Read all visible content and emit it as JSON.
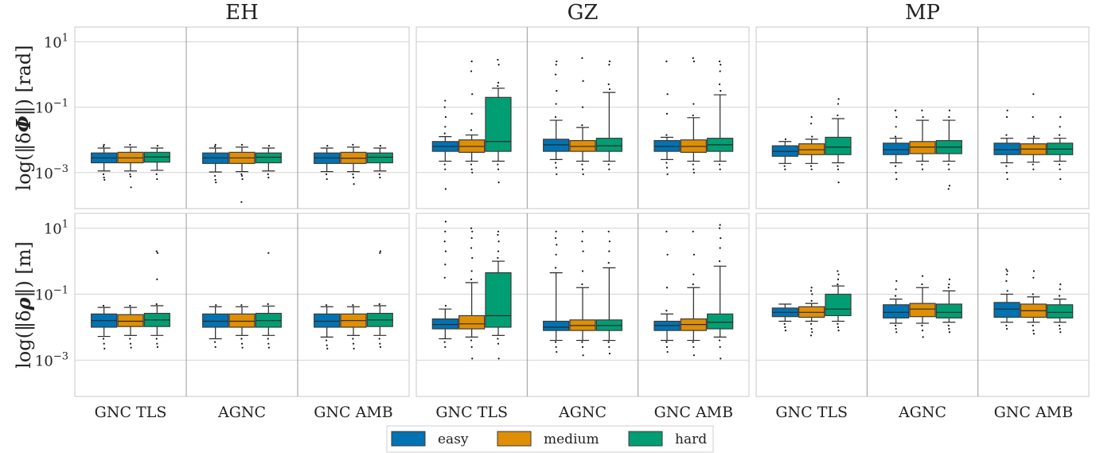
{
  "chart_data": {
    "type": "box",
    "columns": [
      "EH",
      "GZ",
      "MP"
    ],
    "rows": [
      {
        "ylabel_prefix": "log(‖δ",
        "ylabel_symbol": "Φ",
        "ylabel_suffix": "‖) [rad]"
      },
      {
        "ylabel_prefix": "log(‖δ",
        "ylabel_symbol": "ρ",
        "ylabel_suffix": "‖) [m]"
      }
    ],
    "methods": [
      "GNC TLS",
      "AGNC",
      "GNC AMB"
    ],
    "y_scale": "log",
    "ylim_exp": [
      -4.1,
      1.45
    ],
    "y_ticks": [
      {
        "exp": 1,
        "base": "10",
        "sup": "1"
      },
      {
        "exp": -1,
        "base": "10",
        "sup": "−1"
      },
      {
        "exp": -3,
        "base": "10",
        "sup": "−3"
      }
    ],
    "grid": true,
    "legend_position": "bottom-center",
    "legend": [
      {
        "label": "easy",
        "color": "#0173b2"
      },
      {
        "label": "medium",
        "color": "#de8f05"
      },
      {
        "label": "hard",
        "color": "#029e73"
      }
    ],
    "series": [
      {
        "row": 0,
        "col": 0,
        "method": 0,
        "boxes": [
          {
            "med": -2.55,
            "q1": -2.7,
            "q3": -2.4,
            "lo": -2.95,
            "hi": -2.25,
            "fl": [
              -3.05,
              -3.15,
              -3.22,
              -2.2,
              -2.15
            ]
          },
          {
            "med": -2.55,
            "q1": -2.7,
            "q3": -2.38,
            "lo": -2.95,
            "hi": -2.22,
            "fl": [
              -3.05,
              -3.12,
              -3.45,
              -2.15
            ]
          },
          {
            "med": -2.52,
            "q1": -2.68,
            "q3": -2.38,
            "lo": -2.93,
            "hi": -2.25,
            "fl": [
              -3.05,
              -3.2,
              -2.18
            ]
          }
        ]
      },
      {
        "row": 0,
        "col": 0,
        "method": 1,
        "boxes": [
          {
            "med": -2.55,
            "q1": -2.72,
            "q3": -2.4,
            "lo": -2.98,
            "hi": -2.25,
            "fl": [
              -3.1,
              -3.22,
              -3.3,
              -2.2,
              -2.15
            ]
          },
          {
            "med": -2.55,
            "q1": -2.72,
            "q3": -2.38,
            "lo": -2.97,
            "hi": -2.22,
            "fl": [
              -3.05,
              -3.1,
              -3.2,
              -3.9,
              -2.15
            ]
          },
          {
            "med": -2.53,
            "q1": -2.7,
            "q3": -2.4,
            "lo": -2.95,
            "hi": -2.25,
            "fl": [
              -3.05,
              -3.15,
              -2.18
            ]
          }
        ]
      },
      {
        "row": 0,
        "col": 0,
        "method": 2,
        "boxes": [
          {
            "med": -2.55,
            "q1": -2.72,
            "q3": -2.4,
            "lo": -2.97,
            "hi": -2.25,
            "fl": [
              -3.05,
              -3.2,
              -2.18
            ]
          },
          {
            "med": -2.56,
            "q1": -2.72,
            "q3": -2.38,
            "lo": -2.97,
            "hi": -2.22,
            "fl": [
              -3.05,
              -3.15,
              -3.35,
              -2.15
            ]
          },
          {
            "med": -2.53,
            "q1": -2.7,
            "q3": -2.4,
            "lo": -2.95,
            "hi": -2.25,
            "fl": [
              -3.05,
              -3.15,
              -2.18
            ]
          }
        ]
      },
      {
        "row": 1,
        "col": 0,
        "method": 0,
        "boxes": [
          {
            "med": -1.8,
            "q1": -2.0,
            "q3": -1.6,
            "lo": -2.28,
            "hi": -1.4,
            "fl": [
              -2.35,
              -2.5,
              -2.65,
              -1.35
            ]
          },
          {
            "med": -1.82,
            "q1": -1.98,
            "q3": -1.62,
            "lo": -2.25,
            "hi": -1.4,
            "fl": [
              -2.35,
              -2.5,
              -2.62,
              -1.35
            ]
          },
          {
            "med": -1.78,
            "q1": -1.98,
            "q3": -1.58,
            "lo": -2.25,
            "hi": -1.35,
            "fl": [
              -2.35,
              -2.5,
              -2.6,
              -1.3,
              -0.55,
              0.25,
              0.3
            ]
          }
        ]
      },
      {
        "row": 1,
        "col": 0,
        "method": 1,
        "boxes": [
          {
            "med": -1.82,
            "q1": -2.0,
            "q3": -1.6,
            "lo": -2.35,
            "hi": -1.38,
            "fl": [
              -2.45,
              -2.6,
              -1.33
            ]
          },
          {
            "med": -1.82,
            "q1": -2.0,
            "q3": -1.6,
            "lo": -2.25,
            "hi": -1.38,
            "fl": [
              -2.35,
              -2.5,
              -2.62,
              -1.33
            ]
          },
          {
            "med": -1.8,
            "q1": -2.0,
            "q3": -1.58,
            "lo": -2.25,
            "hi": -1.36,
            "fl": [
              -2.35,
              -2.5,
              -2.62,
              -1.3,
              0.25
            ]
          }
        ]
      },
      {
        "row": 1,
        "col": 0,
        "method": 2,
        "boxes": [
          {
            "med": -1.82,
            "q1": -2.0,
            "q3": -1.6,
            "lo": -2.3,
            "hi": -1.38,
            "fl": [
              -2.4,
              -2.55,
              -2.65,
              -1.33
            ]
          },
          {
            "med": -1.8,
            "q1": -2.0,
            "q3": -1.6,
            "lo": -2.25,
            "hi": -1.38,
            "fl": [
              -2.35,
              -2.5,
              -2.65,
              -1.33
            ]
          },
          {
            "med": -1.78,
            "q1": -1.98,
            "q3": -1.58,
            "lo": -2.25,
            "hi": -1.35,
            "fl": [
              -2.35,
              -2.5,
              -2.6,
              -1.3,
              0.25,
              0.3
            ]
          }
        ]
      },
      {
        "row": 0,
        "col": 1,
        "method": 0,
        "boxes": [
          {
            "med": -2.2,
            "q1": -2.35,
            "q3": -2.05,
            "lo": -2.65,
            "hi": -1.9,
            "fl": [
              -2.75,
              -2.9,
              -3.5,
              -1.8,
              -1.6,
              -1.3,
              -1.0,
              -0.8
            ]
          },
          {
            "med": -2.2,
            "q1": -2.38,
            "q3": -2.0,
            "lo": -2.65,
            "hi": -1.85,
            "fl": [
              -2.75,
              -2.9,
              -3.0,
              -1.7,
              -1.2,
              -0.6,
              0.1,
              0.4
            ]
          },
          {
            "med": -2.05,
            "q1": -2.35,
            "q3": -0.7,
            "lo": -2.65,
            "hi": -0.42,
            "fl": [
              -2.75,
              -2.9,
              -3.3,
              -0.35,
              -0.25,
              0.3,
              0.45
            ]
          }
        ]
      },
      {
        "row": 0,
        "col": 1,
        "method": 1,
        "boxes": [
          {
            "med": -2.15,
            "q1": -2.35,
            "q3": -1.98,
            "lo": -2.6,
            "hi": -1.4,
            "fl": [
              -2.7,
              -2.85,
              -3.05,
              -1.3,
              -0.9,
              -0.5,
              0.0,
              0.3,
              0.4
            ]
          },
          {
            "med": -2.2,
            "q1": -2.35,
            "q3": -2.02,
            "lo": -2.65,
            "hi": -1.62,
            "fl": [
              -2.75,
              -2.9,
              -3.05,
              -1.55,
              -1.0,
              -0.2,
              0.5
            ]
          },
          {
            "med": -2.18,
            "q1": -2.35,
            "q3": -1.95,
            "lo": -2.65,
            "hi": -0.55,
            "fl": [
              -2.75,
              -2.9,
              -0.45,
              -0.3,
              0.3,
              0.4
            ]
          }
        ]
      },
      {
        "row": 0,
        "col": 1,
        "method": 2,
        "boxes": [
          {
            "med": -2.2,
            "q1": -2.35,
            "q3": -2.02,
            "lo": -2.6,
            "hi": -1.92,
            "fl": [
              -2.7,
              -2.85,
              -3.05,
              -1.85,
              -1.2,
              -0.6,
              0.4
            ]
          },
          {
            "med": -2.2,
            "q1": -2.38,
            "q3": -2.0,
            "lo": -2.65,
            "hi": -1.32,
            "fl": [
              -2.75,
              -2.9,
              -3.0,
              -1.25,
              -0.9,
              0.4,
              0.5
            ]
          },
          {
            "med": -2.15,
            "q1": -2.35,
            "q3": -1.95,
            "lo": -2.65,
            "hi": -0.62,
            "fl": [
              -2.75,
              -2.9,
              -0.5,
              -0.3,
              0.1,
              0.3,
              0.4
            ]
          }
        ]
      },
      {
        "row": 1,
        "col": 1,
        "method": 0,
        "boxes": [
          {
            "med": -1.92,
            "q1": -2.05,
            "q3": -1.75,
            "lo": -2.35,
            "hi": -1.45,
            "fl": [
              -2.45,
              -2.6,
              -1.35,
              -0.5,
              -0.1,
              0.3,
              0.6,
              0.9,
              1.2
            ]
          },
          {
            "med": -1.9,
            "q1": -2.05,
            "q3": -1.65,
            "lo": -2.3,
            "hi": -0.65,
            "fl": [
              -2.4,
              -2.6,
              -2.95,
              -0.55,
              -0.3,
              0.1,
              0.4,
              0.7,
              0.9,
              1.0
            ]
          },
          {
            "med": -1.65,
            "q1": -2.0,
            "q3": -0.35,
            "lo": -2.25,
            "hi": 0.0,
            "fl": [
              -2.35,
              -2.5,
              -2.95,
              0.1,
              0.3,
              0.6,
              0.8,
              0.9
            ]
          }
        ]
      },
      {
        "row": 1,
        "col": 1,
        "method": 1,
        "boxes": [
          {
            "med": -2.0,
            "q1": -2.1,
            "q3": -1.82,
            "lo": -2.4,
            "hi": -0.35,
            "fl": [
              -2.45,
              -2.6,
              -2.75,
              -0.2,
              0.2,
              0.5,
              0.7,
              0.9
            ]
          },
          {
            "med": -1.95,
            "q1": -2.1,
            "q3": -1.78,
            "lo": -2.4,
            "hi": -0.8,
            "fl": [
              -2.45,
              -2.6,
              -2.85,
              -0.7,
              -0.3,
              0.3,
              0.6,
              0.9
            ]
          },
          {
            "med": -1.95,
            "q1": -2.1,
            "q3": -1.78,
            "lo": -2.4,
            "hi": -0.2,
            "fl": [
              -2.45,
              -2.6,
              -2.8,
              -0.05,
              0.3,
              0.6,
              0.9
            ]
          }
        ]
      },
      {
        "row": 1,
        "col": 1,
        "method": 2,
        "boxes": [
          {
            "med": -1.95,
            "q1": -2.1,
            "q3": -1.82,
            "lo": -2.4,
            "hi": -1.6,
            "fl": [
              -2.45,
              -2.6,
              -2.75,
              -1.5,
              -0.8,
              0.2,
              0.9
            ]
          },
          {
            "med": -1.92,
            "q1": -2.1,
            "q3": -1.75,
            "lo": -2.4,
            "hi": -0.8,
            "fl": [
              -2.45,
              -2.6,
              -2.85,
              -0.7,
              -0.4,
              0.2,
              0.9
            ]
          },
          {
            "med": -1.85,
            "q1": -2.05,
            "q3": -1.6,
            "lo": -2.3,
            "hi": -0.15,
            "fl": [
              -2.4,
              -2.6,
              -2.95,
              0.0,
              0.4,
              0.7,
              1.0,
              1.1
            ]
          }
        ]
      },
      {
        "row": 0,
        "col": 2,
        "method": 0,
        "boxes": [
          {
            "med": -2.35,
            "q1": -2.5,
            "q3": -2.18,
            "lo": -2.72,
            "hi": -2.05,
            "fl": [
              -2.8,
              -2.9,
              -1.98
            ]
          },
          {
            "med": -2.3,
            "q1": -2.45,
            "q3": -2.12,
            "lo": -2.72,
            "hi": -1.98,
            "fl": [
              -2.8,
              -2.9,
              -1.9,
              -1.5,
              -1.3
            ]
          },
          {
            "med": -2.22,
            "q1": -2.45,
            "q3": -1.92,
            "lo": -2.7,
            "hi": -1.35,
            "fl": [
              -2.8,
              -2.9,
              -3.3,
              -1.25,
              -0.9,
              -0.75
            ]
          }
        ]
      },
      {
        "row": 0,
        "col": 2,
        "method": 1,
        "boxes": [
          {
            "med": -2.3,
            "q1": -2.45,
            "q3": -2.1,
            "lo": -2.7,
            "hi": -1.95,
            "fl": [
              -2.8,
              -3.0,
              -3.2,
              -1.9,
              -1.6,
              -1.3,
              -1.1
            ]
          },
          {
            "med": -2.22,
            "q1": -2.42,
            "q3": -2.05,
            "lo": -2.65,
            "hi": -1.4,
            "fl": [
              -2.75,
              -2.9,
              -1.3,
              -1.1
            ]
          },
          {
            "med": -2.22,
            "q1": -2.42,
            "q3": -2.02,
            "lo": -2.65,
            "hi": -1.4,
            "fl": [
              -2.75,
              -2.9,
              -3.4,
              -3.5,
              -1.3,
              -1.1
            ]
          }
        ]
      },
      {
        "row": 0,
        "col": 2,
        "method": 2,
        "boxes": [
          {
            "med": -2.3,
            "q1": -2.45,
            "q3": -2.1,
            "lo": -2.7,
            "hi": -1.95,
            "fl": [
              -2.8,
              -3.0,
              -3.2,
              -1.85,
              -1.3,
              -1.1
            ]
          },
          {
            "med": -2.28,
            "q1": -2.45,
            "q3": -2.12,
            "lo": -2.68,
            "hi": -1.95,
            "fl": [
              -2.75,
              -2.9,
              -1.9,
              -1.3,
              -0.6
            ]
          },
          {
            "med": -2.28,
            "q1": -2.45,
            "q3": -2.1,
            "lo": -2.65,
            "hi": -1.95,
            "fl": [
              -2.75,
              -2.9,
              -3.2,
              -1.85,
              -1.6,
              -1.3
            ]
          }
        ]
      },
      {
        "row": 1,
        "col": 2,
        "method": 0,
        "boxes": [
          {
            "med": -1.55,
            "q1": -1.68,
            "q3": -1.42,
            "lo": -1.82,
            "hi": -1.3,
            "fl": [
              -1.9,
              -2.0,
              -2.1
            ]
          },
          {
            "med": -1.55,
            "q1": -1.7,
            "q3": -1.38,
            "lo": -1.82,
            "hi": -1.28,
            "fl": [
              -1.9,
              -2.05,
              -2.15,
              -2.25,
              -1.2,
              -1.0,
              -0.9,
              -0.8
            ]
          },
          {
            "med": -1.45,
            "q1": -1.65,
            "q3": -1.0,
            "lo": -1.82,
            "hi": -0.75,
            "fl": [
              -1.9,
              -2.0,
              -2.1,
              -0.7,
              -0.55,
              -0.4,
              -0.3
            ]
          }
        ]
      },
      {
        "row": 1,
        "col": 2,
        "method": 1,
        "boxes": [
          {
            "med": -1.55,
            "q1": -1.72,
            "q3": -1.32,
            "lo": -1.88,
            "hi": -1.15,
            "fl": [
              -1.95,
              -2.05,
              -2.15,
              -1.05,
              -0.85,
              -0.6
            ]
          },
          {
            "med": -1.45,
            "q1": -1.68,
            "q3": -1.28,
            "lo": -1.88,
            "hi": -0.8,
            "fl": [
              -1.95,
              -2.1,
              -2.3,
              -0.7,
              -0.45
            ]
          },
          {
            "med": -1.55,
            "q1": -1.72,
            "q3": -1.3,
            "lo": -1.85,
            "hi": -0.9,
            "fl": [
              -1.95,
              -2.05,
              -2.15,
              -0.8,
              -0.7,
              -0.55
            ]
          }
        ]
      },
      {
        "row": 1,
        "col": 2,
        "method": 2,
        "boxes": [
          {
            "med": -1.45,
            "q1": -1.7,
            "q3": -1.25,
            "lo": -1.85,
            "hi": -1.0,
            "fl": [
              -1.95,
              -2.05,
              -0.9,
              -0.6,
              -0.4,
              -0.3,
              -0.25
            ]
          },
          {
            "med": -1.5,
            "q1": -1.7,
            "q3": -1.3,
            "lo": -1.85,
            "hi": -1.08,
            "fl": [
              -1.95,
              -2.1,
              -2.2,
              -1.0,
              -0.5,
              -0.3
            ]
          },
          {
            "med": -1.55,
            "q1": -1.72,
            "q3": -1.32,
            "lo": -1.85,
            "hi": -1.15,
            "fl": [
              -1.95,
              -2.05,
              -2.15,
              -1.05,
              -0.85,
              -0.7
            ]
          }
        ]
      }
    ]
  }
}
